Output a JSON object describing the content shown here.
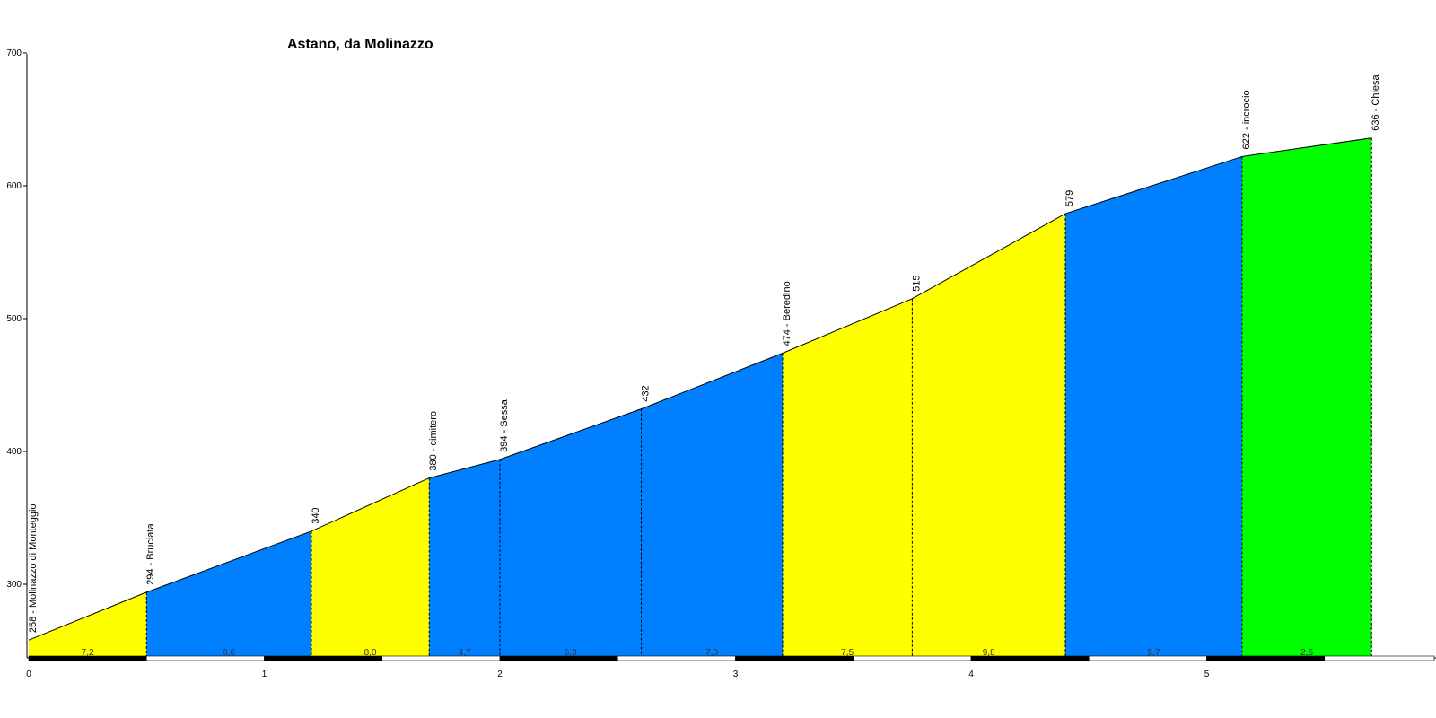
{
  "chart_data": {
    "type": "area",
    "title": "Astano, da Molinazzo",
    "xlabel": "",
    "ylabel": "",
    "xlim": [
      0,
      5.96
    ],
    "ylim": [
      245,
      700
    ],
    "x_ticks": [
      "0",
      "1",
      "2",
      "3",
      "4",
      "5"
    ],
    "y_ticks": [
      "300",
      "400",
      "500",
      "600",
      "700"
    ],
    "points": [
      {
        "x": 0.0,
        "y": 258,
        "label": "258 - Molinazzo di Monteggio"
      },
      {
        "x": 0.5,
        "y": 294,
        "label": "294 - Bruciata"
      },
      {
        "x": 1.2,
        "y": 340,
        "label": "340"
      },
      {
        "x": 1.7,
        "y": 380,
        "label": "380 - cimitero"
      },
      {
        "x": 2.0,
        "y": 394,
        "label": "394 - Sessa"
      },
      {
        "x": 2.6,
        "y": 432,
        "label": "432"
      },
      {
        "x": 3.2,
        "y": 474,
        "label": "474 - Beredino"
      },
      {
        "x": 3.75,
        "y": 515,
        "label": "515"
      },
      {
        "x": 4.4,
        "y": 579,
        "label": "579"
      },
      {
        "x": 5.15,
        "y": 622,
        "label": "622 - incrocio"
      },
      {
        "x": 5.7,
        "y": 636,
        "label": "636 - Chiesa"
      }
    ],
    "segments": [
      {
        "gradient": "7,2",
        "color": "#ffff00"
      },
      {
        "gradient": "6,6",
        "color": "#0080ff"
      },
      {
        "gradient": "8,0",
        "color": "#ffff00"
      },
      {
        "gradient": "4,7",
        "color": "#0080ff"
      },
      {
        "gradient": "6,3",
        "color": "#0080ff"
      },
      {
        "gradient": "7,0",
        "color": "#0080ff"
      },
      {
        "gradient": "7,5",
        "color": "#ffff00"
      },
      {
        "gradient": "9,8",
        "color": "#ffff00"
      },
      {
        "gradient": "5,7",
        "color": "#0080ff"
      },
      {
        "gradient": "2,5",
        "color": "#00ff00"
      }
    ],
    "grid": false,
    "legend": "none"
  }
}
